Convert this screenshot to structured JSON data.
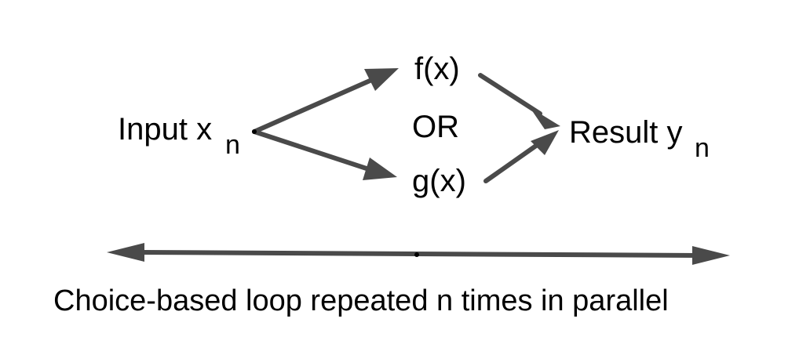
{
  "diagram": {
    "input": {
      "label": "Input x",
      "subscript": "n"
    },
    "func_f": "f(x)",
    "or_text": "OR",
    "func_g": "g(x)",
    "result": {
      "label": "Result y",
      "subscript": "n"
    },
    "caption": "Choice-based loop repeated n times in parallel",
    "edge_color": "#4a4a4a"
  }
}
